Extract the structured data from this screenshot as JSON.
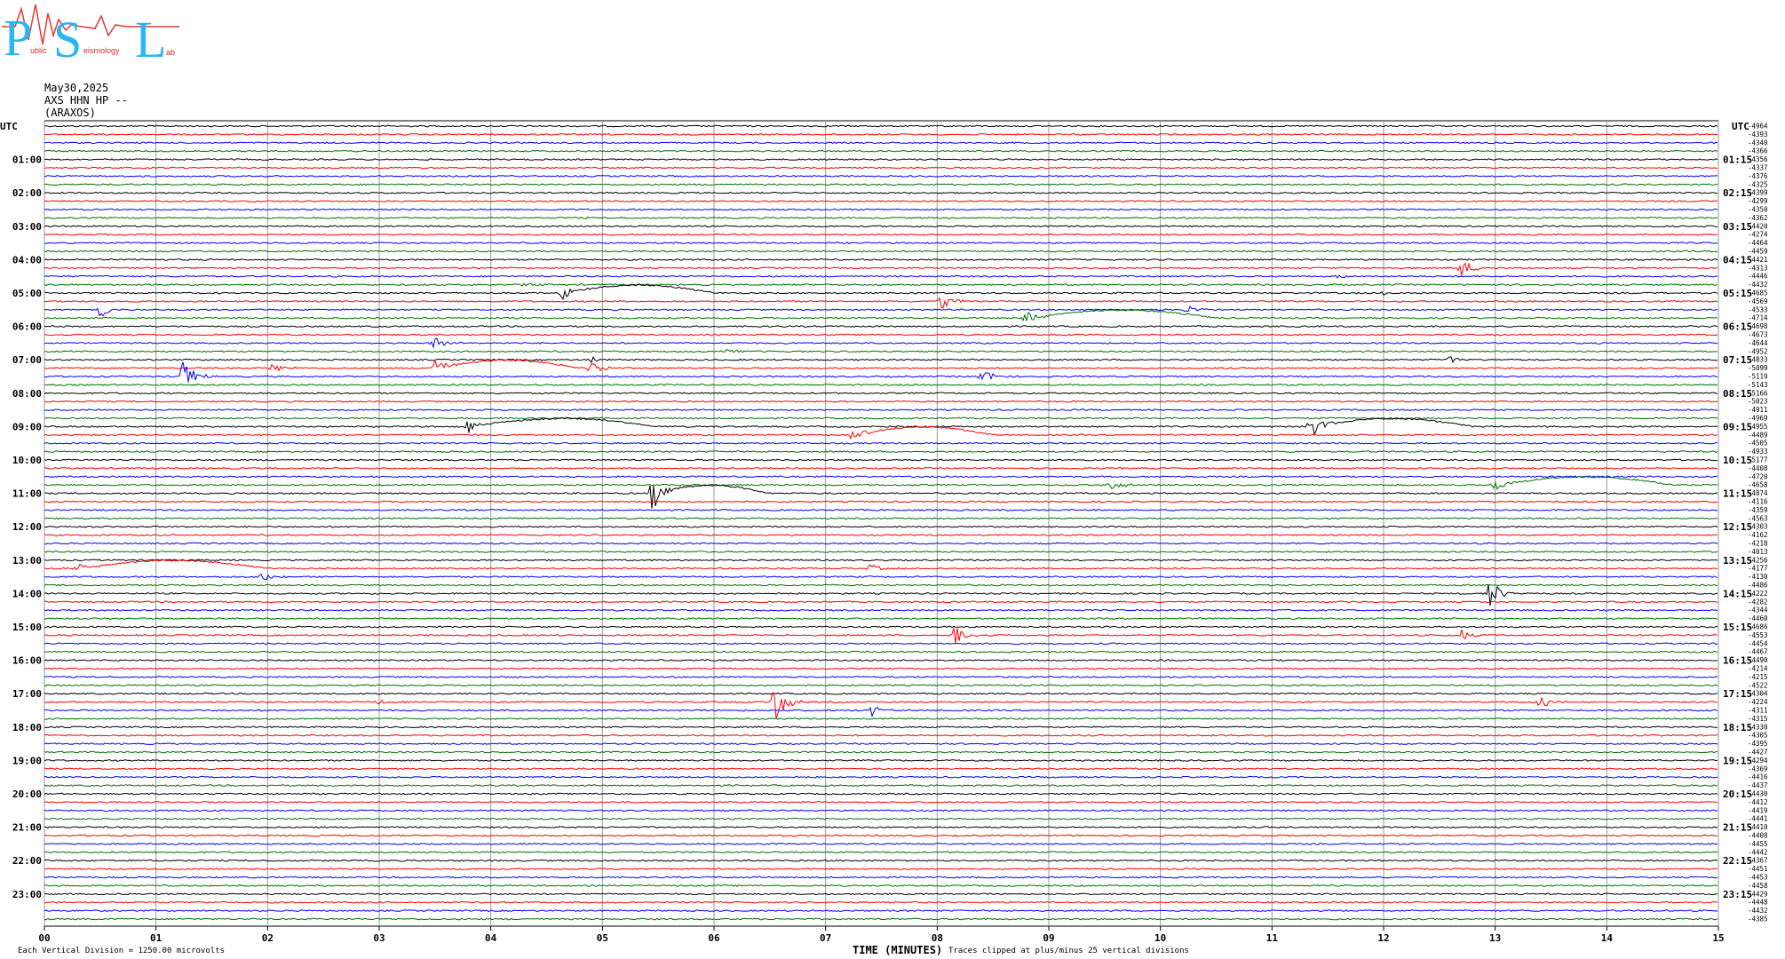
{
  "logo": {
    "letters": [
      "P",
      "S",
      "L"
    ],
    "small_text": [
      "ublic",
      "eismology",
      "ab"
    ],
    "color": "#29b6f6",
    "wave_color": "#e53935"
  },
  "header": {
    "date": "May30,2025",
    "channel": "AXS HHN HP --",
    "station": "(ARAXOS)"
  },
  "axis": {
    "utc_left": "UTC",
    "utc_right": "UTC",
    "left_labels": [
      "01:00",
      "02:00",
      "03:00",
      "04:00",
      "05:00",
      "06:00",
      "07:00",
      "08:00",
      "09:00",
      "10:00",
      "11:00",
      "12:00",
      "13:00",
      "14:00",
      "15:00",
      "16:00",
      "17:00",
      "18:00",
      "19:00",
      "20:00",
      "21:00",
      "22:00",
      "23:00"
    ],
    "right_labels": [
      "01:15",
      "02:15",
      "03:15",
      "04:15",
      "05:15",
      "06:15",
      "07:15",
      "08:15",
      "09:15",
      "10:15",
      "11:15",
      "12:15",
      "13:15",
      "14:15",
      "15:15",
      "16:15",
      "17:15",
      "18:15",
      "19:15",
      "20:15",
      "21:15",
      "22:15",
      "23:15"
    ],
    "x_ticks": [
      "00",
      "01",
      "02",
      "03",
      "04",
      "05",
      "06",
      "07",
      "08",
      "09",
      "10",
      "11",
      "12",
      "13",
      "14",
      "15"
    ],
    "x_title": "TIME (MINUTES)"
  },
  "footer": {
    "vertical_division": "Each Vertical Division = 1250.00 microvolts",
    "clip_note": "Traces clipped at plus/minus 25 vertical divisions"
  },
  "chart_data": {
    "type": "line",
    "title": "",
    "xlabel": "TIME (MINUTES)",
    "xlim": [
      0,
      15
    ],
    "trace_count": 96,
    "minutes_per_trace": 15,
    "colors": [
      "#000000",
      "#ff0000",
      "#0000ff",
      "#007000"
    ],
    "trace_mean_values": [
      "-4964",
      "-4393",
      "-4340",
      "-4366",
      "-4356",
      "-4337",
      "-4376",
      "-4325",
      "-4399",
      "-4299",
      "-4350",
      "-4362",
      "-4420",
      "-4274",
      "-4464",
      "-4459",
      "-4421",
      "-4313",
      "-4446",
      "-4432",
      "-4685",
      "-4569",
      "-4533",
      "-4714",
      "-4698",
      "-4673",
      "-4644",
      "-4952",
      "-4833",
      "-5099",
      "-5119",
      "-5143",
      "-5166",
      "-5023",
      "-4911",
      "-4969",
      "-4955",
      "-4489",
      "-4505",
      "-4933",
      "-5177",
      "-4408",
      "-4720",
      "-4658",
      "-4874",
      "-4116",
      "-4359",
      "-4563",
      "-4303",
      "-4162",
      "-4218",
      "-4013",
      "-4256",
      "-4177",
      "-4130",
      "-4486",
      "-4222",
      "-4282",
      "-4344",
      "-4460",
      "-4686",
      "-4553",
      "-4454",
      "-4467",
      "-4490",
      "-4214",
      "-4215",
      "-4522",
      "-4304",
      "-4224",
      "-4311",
      "-4315",
      "-4330",
      "-4305",
      "-4395",
      "-4427",
      "-4294",
      "-4369",
      "-4416",
      "-4437",
      "-4430",
      "-4412",
      "-4419",
      "-4441",
      "-4410",
      "-4408",
      "-4455",
      "-4442",
      "-4367",
      "-4451",
      "-4453",
      "-4458",
      "-4429",
      "-4448",
      "-4432",
      "-4385"
    ],
    "events": [
      {
        "trace": 17,
        "minute": 12.7,
        "amp": 10
      },
      {
        "trace": 18,
        "minute": 11.6,
        "amp": 2
      },
      {
        "trace": 19,
        "minute": 4.3,
        "amp": 3
      },
      {
        "trace": 20,
        "minute": 4.65,
        "amp": 8,
        "long_period": true,
        "lp_end": 6.0
      },
      {
        "trace": 20,
        "minute": 12.0,
        "amp": 3
      },
      {
        "trace": 21,
        "minute": 8.05,
        "amp": 10
      },
      {
        "trace": 22,
        "minute": 0.5,
        "amp": 10
      },
      {
        "trace": 22,
        "minute": 10.25,
        "amp": 5
      },
      {
        "trace": 23,
        "minute": 8.8,
        "amp": 12,
        "long_period": true,
        "lp_end": 10.5
      },
      {
        "trace": 26,
        "minute": 3.5,
        "amp": 8
      },
      {
        "trace": 27,
        "minute": 6.1,
        "amp": 6
      },
      {
        "trace": 28,
        "minute": 4.9,
        "amp": 5
      },
      {
        "trace": 28,
        "minute": 12.6,
        "amp": 4
      },
      {
        "trace": 29,
        "minute": 2.05,
        "amp": 6
      },
      {
        "trace": 29,
        "minute": 3.5,
        "amp": 10,
        "long_period": true,
        "lp_end": 4.8
      },
      {
        "trace": 29,
        "minute": 4.9,
        "amp": 10
      },
      {
        "trace": 30,
        "minute": 1.25,
        "amp": 22
      },
      {
        "trace": 30,
        "minute": 8.4,
        "amp": 9
      },
      {
        "trace": 36,
        "minute": 3.8,
        "amp": 8,
        "long_period": true,
        "lp_end": 5.5
      },
      {
        "trace": 36,
        "minute": 11.35,
        "amp": 16,
        "long_period": true,
        "lp_end": 12.8
      },
      {
        "trace": 37,
        "minute": 7.25,
        "amp": 9,
        "long_period": true,
        "lp_end": 8.5
      },
      {
        "trace": 43,
        "minute": 13.0,
        "amp": 8,
        "long_period": true,
        "lp_end": 14.6
      },
      {
        "trace": 43,
        "minute": 9.55,
        "amp": 7
      },
      {
        "trace": 44,
        "minute": 5.45,
        "amp": 22,
        "long_period": true,
        "lp_end": 6.5
      },
      {
        "trace": 53,
        "minute": 0.3,
        "amp": 6,
        "long_period": true,
        "lp_end": 2.0
      },
      {
        "trace": 53,
        "minute": 7.4,
        "amp": 5
      },
      {
        "trace": 54,
        "minute": 1.95,
        "amp": 6
      },
      {
        "trace": 56,
        "minute": 12.95,
        "amp": 18
      },
      {
        "trace": 61,
        "minute": 8.15,
        "amp": 14
      },
      {
        "trace": 61,
        "minute": 12.7,
        "amp": 7
      },
      {
        "trace": 69,
        "minute": 3.0,
        "amp": 3
      },
      {
        "trace": 69,
        "minute": 6.55,
        "amp": 22
      },
      {
        "trace": 69,
        "minute": 13.4,
        "amp": 8
      },
      {
        "trace": 70,
        "minute": 7.4,
        "amp": 8
      }
    ]
  }
}
